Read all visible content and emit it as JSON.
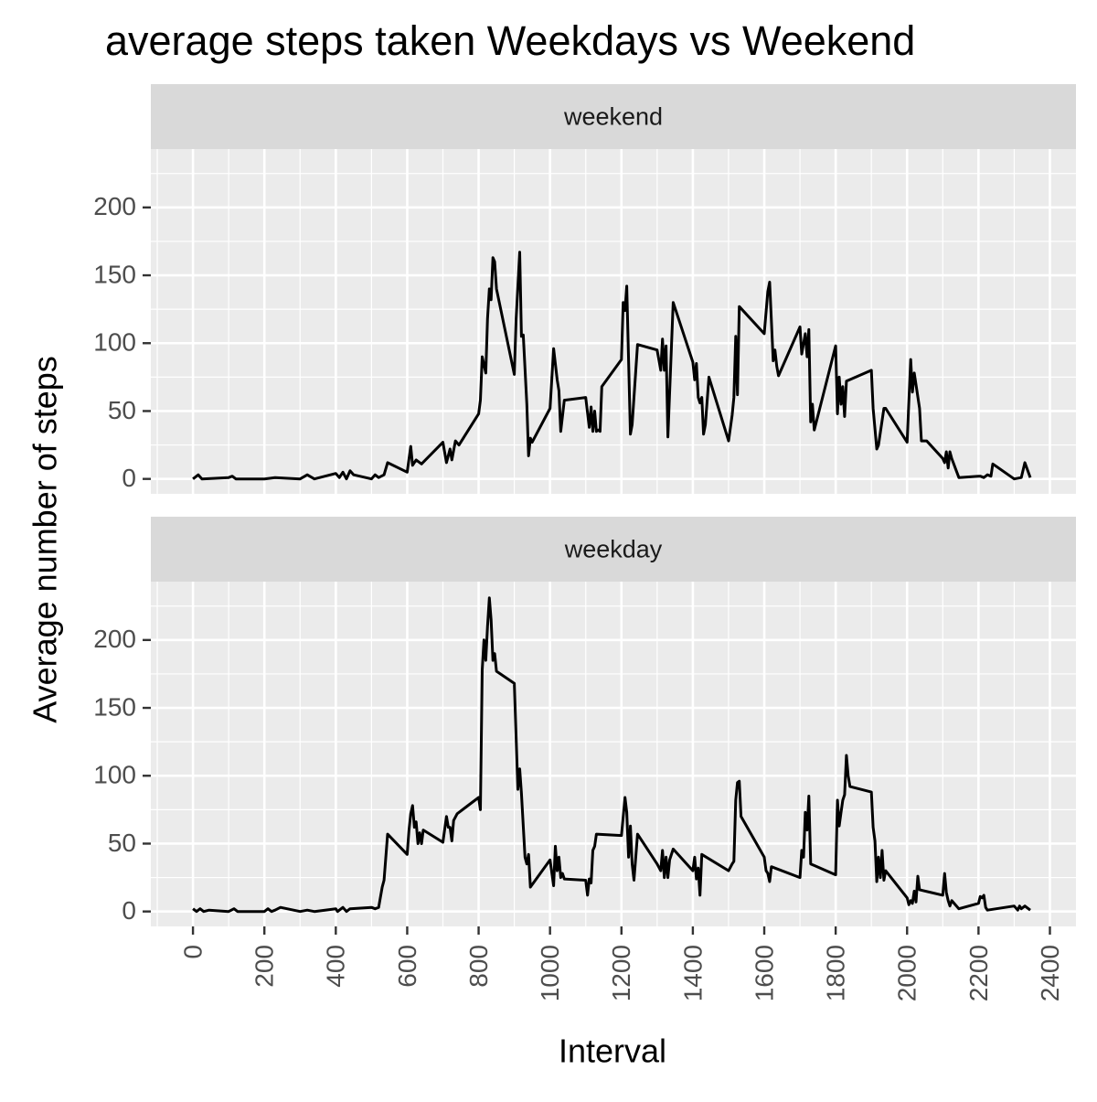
{
  "chart_data": {
    "type": "line",
    "title": "average steps taken Weekdays vs Weekend",
    "xlabel": "Interval",
    "ylabel": "Average number of steps",
    "xlim": [
      -118,
      2473
    ],
    "xticks": [
      0,
      200,
      400,
      600,
      800,
      1000,
      1200,
      1400,
      1600,
      1800,
      2000,
      2200,
      2400
    ],
    "ylim": [
      -11,
      243
    ],
    "yticks": [
      0,
      50,
      100,
      150,
      200
    ],
    "grid": true,
    "series": [
      {
        "name": "weekend",
        "color": "#000000",
        "x": [
          0,
          15,
          25,
          100,
          110,
          120,
          200,
          230,
          300,
          320,
          340,
          400,
          410,
          420,
          430,
          440,
          450,
          500,
          510,
          520,
          535,
          545,
          600,
          610,
          615,
          625,
          640,
          700,
          710,
          720,
          725,
          735,
          745,
          800,
          805,
          810,
          820,
          825,
          830,
          835,
          840,
          845,
          850,
          900,
          905,
          915,
          920,
          925,
          935,
          940,
          945,
          950,
          1000,
          1010,
          1020,
          1025,
          1030,
          1040,
          1100,
          1110,
          1115,
          1120,
          1125,
          1130,
          1135,
          1140,
          1145,
          1200,
          1205,
          1210,
          1215,
          1225,
          1230,
          1245,
          1300,
          1310,
          1315,
          1320,
          1325,
          1330,
          1345,
          1400,
          1405,
          1410,
          1415,
          1420,
          1425,
          1430,
          1435,
          1445,
          1500,
          1510,
          1515,
          1520,
          1525,
          1530,
          1600,
          1610,
          1615,
          1625,
          1630,
          1635,
          1640,
          1700,
          1705,
          1715,
          1720,
          1725,
          1730,
          1735,
          1740,
          1800,
          1805,
          1810,
          1815,
          1820,
          1825,
          1830,
          1900,
          1905,
          1915,
          1920,
          1935,
          1940,
          2000,
          2005,
          2010,
          2015,
          2020,
          2035,
          2040,
          2055,
          2100,
          2105,
          2110,
          2115,
          2120,
          2125,
          2145,
          2200,
          2205,
          2215,
          2220,
          2225,
          2235,
          2240,
          2300,
          2320,
          2330,
          2345
        ],
        "values": [
          0,
          3,
          0,
          1,
          2,
          0,
          0,
          1,
          0,
          3,
          0,
          4,
          1,
          5,
          0,
          6,
          3,
          0,
          3,
          1,
          3,
          12,
          5,
          24,
          10,
          14,
          11,
          27,
          12,
          22,
          14,
          28,
          25,
          48,
          58,
          90,
          78,
          118,
          140,
          132,
          163,
          160,
          140,
          77,
          118,
          167,
          105,
          106,
          55,
          17,
          30,
          27,
          52,
          96,
          73,
          65,
          35,
          58,
          60,
          38,
          53,
          35,
          50,
          35,
          36,
          35,
          68,
          88,
          130,
          124,
          142,
          33,
          40,
          99,
          95,
          80,
          103,
          80,
          98,
          31,
          130,
          86,
          73,
          85,
          60,
          56,
          60,
          33,
          40,
          75,
          28,
          47,
          60,
          105,
          62,
          127,
          107,
          138,
          145,
          87,
          95,
          83,
          76,
          112,
          92,
          107,
          90,
          110,
          42,
          55,
          36,
          98,
          48,
          75,
          55,
          68,
          46,
          72,
          80,
          52,
          22,
          25,
          52,
          52,
          27,
          57,
          88,
          64,
          78,
          52,
          28,
          28,
          15,
          12,
          20,
          8,
          20,
          15,
          1,
          2,
          2,
          1,
          2,
          3,
          2,
          11,
          0,
          1,
          12,
          1
        ]
      },
      {
        "name": "weekday",
        "color": "#000000",
        "x": [
          0,
          10,
          20,
          30,
          45,
          100,
          115,
          125,
          200,
          210,
          220,
          230,
          245,
          300,
          320,
          340,
          400,
          405,
          420,
          430,
          440,
          500,
          510,
          520,
          530,
          535,
          545,
          600,
          605,
          610,
          615,
          620,
          625,
          630,
          635,
          640,
          645,
          700,
          710,
          715,
          720,
          725,
          730,
          740,
          800,
          805,
          810,
          815,
          820,
          825,
          830,
          835,
          840,
          845,
          850,
          900,
          910,
          915,
          920,
          930,
          935,
          940,
          945,
          1000,
          1010,
          1015,
          1020,
          1025,
          1030,
          1035,
          1040,
          1100,
          1105,
          1110,
          1115,
          1120,
          1125,
          1130,
          1200,
          1210,
          1215,
          1220,
          1225,
          1230,
          1235,
          1245,
          1300,
          1310,
          1315,
          1320,
          1325,
          1330,
          1335,
          1345,
          1400,
          1405,
          1410,
          1415,
          1420,
          1425,
          1500,
          1510,
          1515,
          1520,
          1525,
          1530,
          1535,
          1600,
          1605,
          1610,
          1615,
          1620,
          1630,
          1700,
          1705,
          1710,
          1715,
          1720,
          1725,
          1730,
          1800,
          1805,
          1810,
          1815,
          1820,
          1825,
          1830,
          1835,
          1840,
          1900,
          1905,
          1910,
          1915,
          1920,
          1925,
          1930,
          1935,
          1940,
          2000,
          2005,
          2010,
          2015,
          2020,
          2025,
          2030,
          2035,
          2100,
          2105,
          2110,
          2115,
          2120,
          2125,
          2145,
          2200,
          2205,
          2210,
          2215,
          2220,
          2225,
          2300,
          2310,
          2315,
          2320,
          2330,
          2345
        ],
        "values": [
          2,
          0,
          2,
          0,
          1,
          0,
          2,
          0,
          0,
          2,
          0,
          1,
          3,
          0,
          1,
          0,
          2,
          0,
          3,
          0,
          2,
          3,
          2,
          3,
          18,
          23,
          57,
          42,
          60,
          72,
          78,
          62,
          66,
          50,
          58,
          50,
          60,
          51,
          70,
          62,
          62,
          52,
          67,
          72,
          84,
          75,
          178,
          200,
          185,
          210,
          231,
          215,
          185,
          190,
          177,
          168,
          90,
          105,
          87,
          40,
          35,
          42,
          18,
          38,
          19,
          48,
          30,
          40,
          25,
          28,
          24,
          23,
          12,
          24,
          21,
          45,
          48,
          57,
          56,
          84,
          73,
          40,
          63,
          35,
          23,
          57,
          35,
          30,
          45,
          25,
          40,
          25,
          38,
          46,
          30,
          40,
          24,
          32,
          12,
          42,
          30,
          35,
          37,
          82,
          95,
          96,
          70,
          40,
          30,
          28,
          22,
          33,
          32,
          25,
          45,
          40,
          73,
          60,
          85,
          35,
          27,
          82,
          63,
          73,
          82,
          86,
          115,
          100,
          92,
          88,
          62,
          52,
          22,
          40,
          25,
          45,
          23,
          30,
          10,
          5,
          8,
          6,
          15,
          7,
          26,
          16,
          12,
          28,
          14,
          8,
          4,
          8,
          2,
          6,
          11,
          10,
          12,
          3,
          1,
          4,
          1,
          4,
          2,
          4,
          1
        ]
      }
    ]
  }
}
